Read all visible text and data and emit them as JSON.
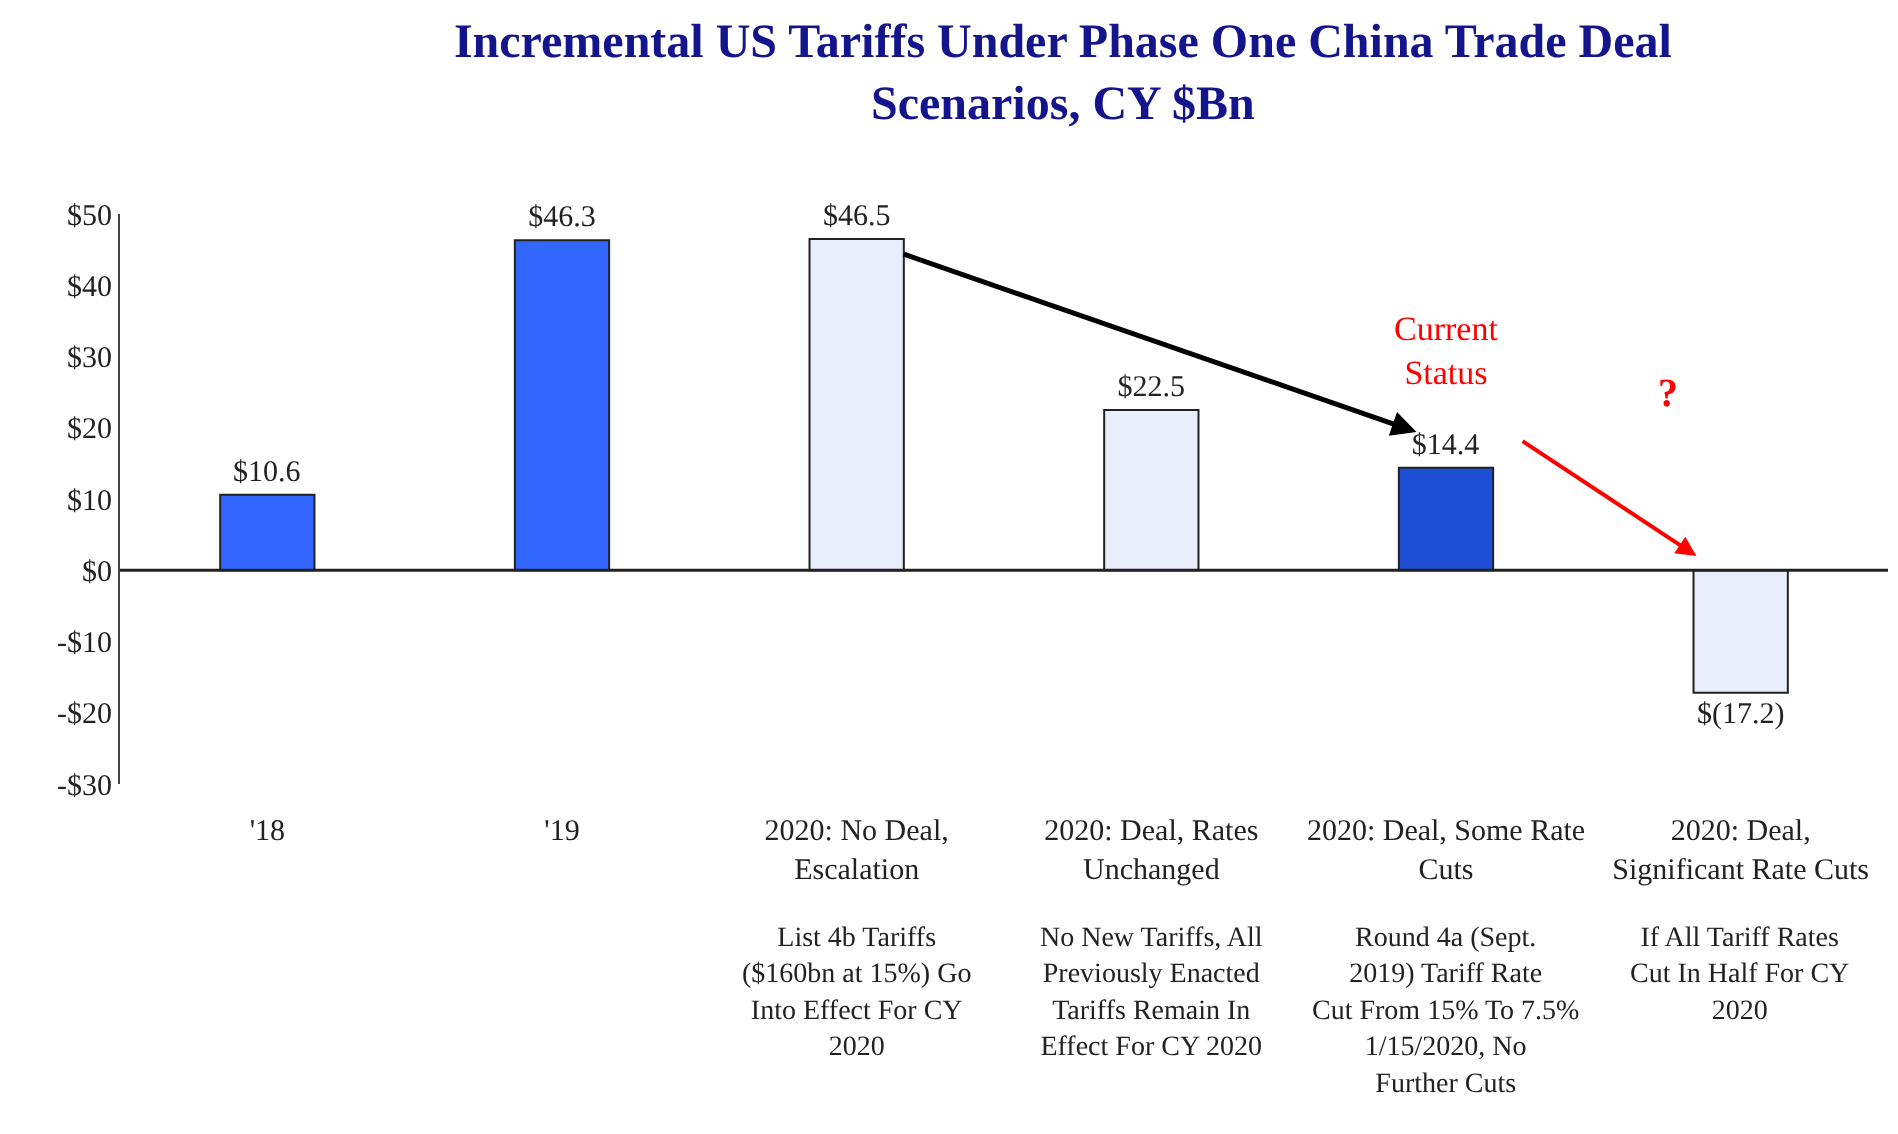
{
  "chart_data": {
    "type": "bar",
    "title": "Incremental US Tariffs Under Phase One China Trade Deal Scenarios, CY $Bn",
    "categories": [
      "'18",
      "'19",
      "2020: No Deal, Escalation",
      "2020: Deal, Rates Unchanged",
      "2020: Deal, Some Rate Cuts",
      "2020: Deal, Significant Rate Cuts"
    ],
    "values": [
      10.6,
      46.3,
      46.5,
      22.5,
      14.4,
      -17.2
    ],
    "value_labels": [
      "$10.6",
      "$46.3",
      "$46.5",
      "$22.5",
      "$14.4",
      "$(17.2)"
    ],
    "colors": [
      "#3366ff",
      "#3366ff",
      "#e8eefc",
      "#e8eefc",
      "#1f4fd6",
      "#e8eefc"
    ],
    "ylim": [
      -30,
      50
    ],
    "yticks": [
      {
        "value": -30,
        "label": "-$30"
      },
      {
        "value": -20,
        "label": "-$20"
      },
      {
        "value": -10,
        "label": "-$10"
      },
      {
        "value": 0,
        "label": "$0"
      },
      {
        "value": 10,
        "label": "$10"
      },
      {
        "value": 20,
        "label": "$20"
      },
      {
        "value": 30,
        "label": "$30"
      },
      {
        "value": 40,
        "label": "$40"
      },
      {
        "value": 50,
        "label": "$50"
      }
    ],
    "legend": false,
    "annotations": [
      "Current Status",
      "?",
      "List 4b Tariffs ($160bn at 15%) Go Into Effect For CY 2020",
      "No New Tariffs, All Previously Enacted Tariffs Remain In Effect For CY 2020",
      "Round 4a (Sept. 2019) Tariff Rate Cut From 15% To 7.5% 1/15/2020, No Further Cuts",
      "If All Tariff Rates Cut In Half For CY 2020"
    ]
  }
}
